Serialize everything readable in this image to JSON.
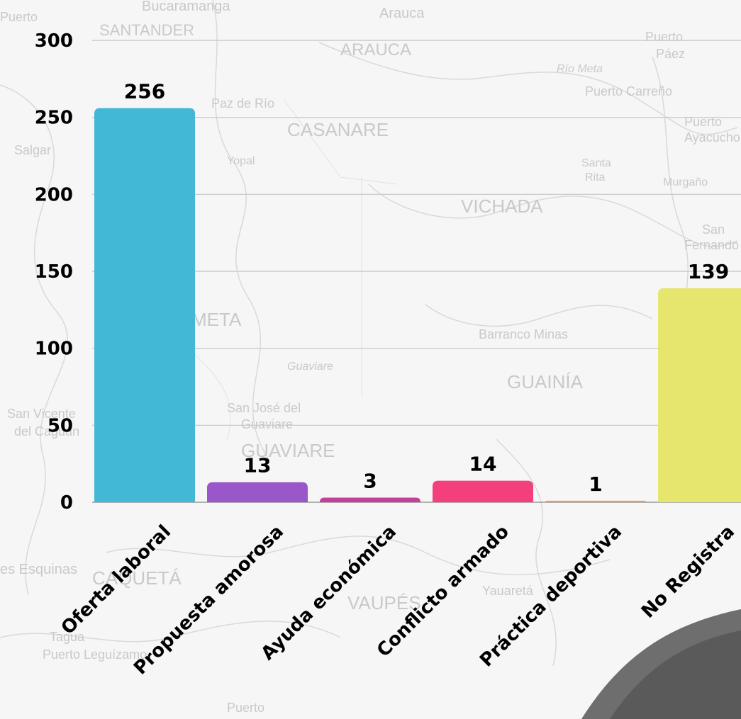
{
  "chart_data": {
    "type": "bar",
    "categories": [
      "Oferta laboral",
      "Propuesta amorosa",
      "Ayuda económica",
      "Conflicto armado",
      "Práctica deportiva",
      "No Registra"
    ],
    "values": [
      256,
      13,
      3,
      14,
      1,
      139
    ],
    "data_labels": [
      "256",
      "13",
      "3",
      "14",
      "1",
      "139"
    ],
    "colors": [
      "#43b8d6",
      "#9a57c9",
      "#c53e9b",
      "#f33f7b",
      "#f7965a",
      "#e6e66e"
    ],
    "ylim": [
      0,
      300
    ],
    "yticks": [
      0,
      50,
      100,
      150,
      200,
      250,
      300
    ],
    "ytick_labels": [
      "0",
      "50",
      "100",
      "150",
      "200",
      "250",
      "300"
    ],
    "grid": true,
    "legend": "none",
    "title": "",
    "xlabel": "",
    "ylabel": ""
  },
  "background": {
    "description_icon": "map-of-colombia-background"
  }
}
